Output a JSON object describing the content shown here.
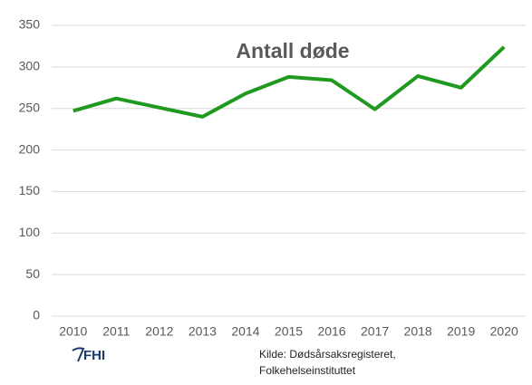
{
  "chart_data": {
    "type": "line",
    "title": "Antall døde",
    "categories": [
      "2010",
      "2011",
      "2012",
      "2013",
      "2014",
      "2015",
      "2016",
      "2017",
      "2018",
      "2019",
      "2020"
    ],
    "series": [
      {
        "name": "Antall døde",
        "color": "#1f9a1f",
        "values": [
          247,
          262,
          251,
          240,
          268,
          288,
          284,
          249,
          289,
          275,
          324
        ]
      }
    ],
    "ylim": [
      0,
      350
    ],
    "yticks": [
      0,
      50,
      100,
      150,
      200,
      250,
      300,
      350
    ],
    "grid": true
  },
  "logo": "FHI",
  "source": [
    "Kilde: Dødsårsaksregisteret,",
    "Folkehelseinstituttet"
  ]
}
